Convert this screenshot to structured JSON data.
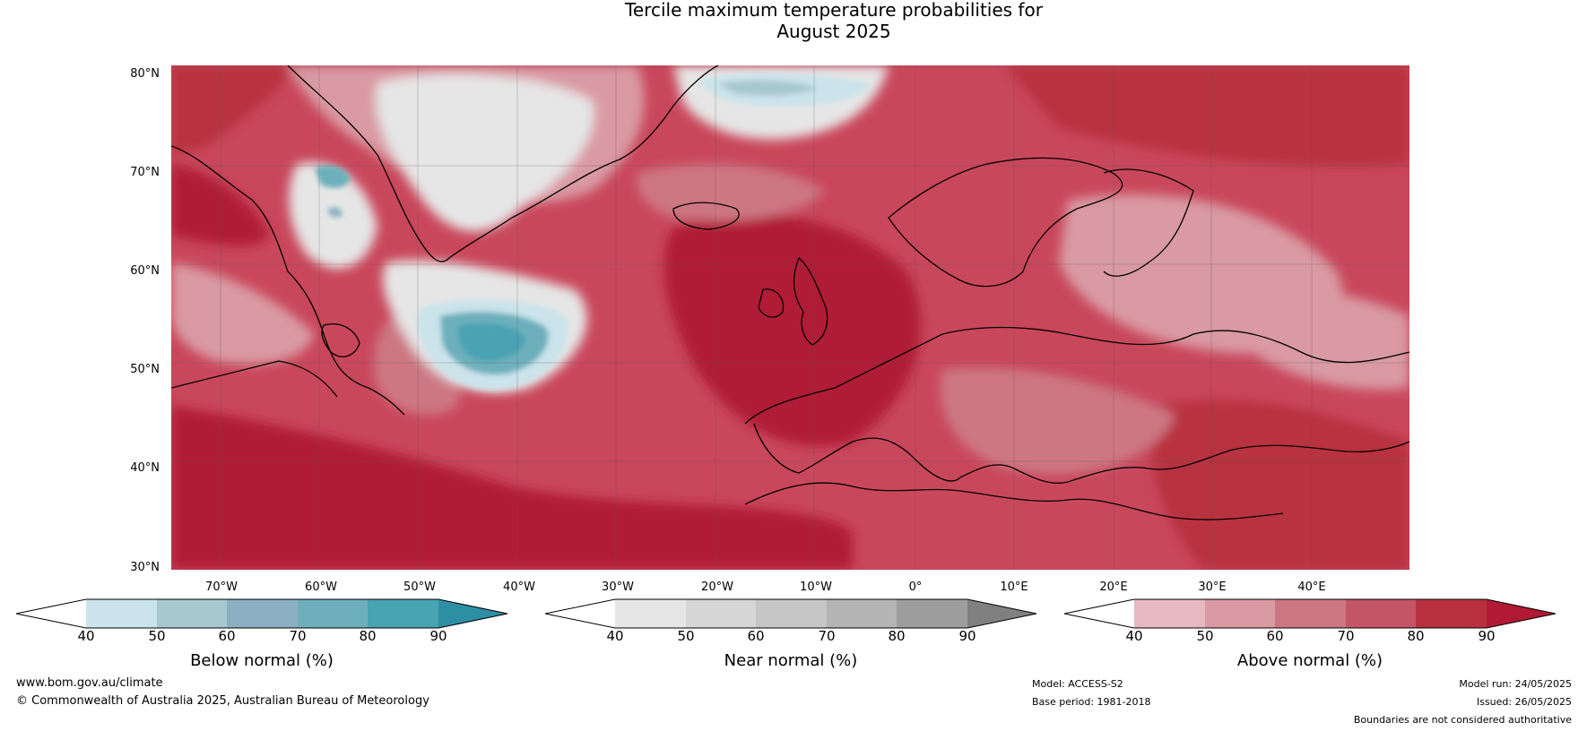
{
  "title_line1": "Tercile maximum temperature probabilities for",
  "title_line2": "August 2025",
  "lat_ticks": [
    "80°N",
    "70°N",
    "60°N",
    "50°N",
    "40°N",
    "30°N"
  ],
  "lon_ticks": [
    "70°W",
    "60°W",
    "50°W",
    "40°W",
    "30°W",
    "20°W",
    "10°W",
    "0°",
    "10°E",
    "20°E",
    "30°E",
    "40°E"
  ],
  "colorbars": [
    {
      "title": "Below normal (%)",
      "ticks": [
        "40",
        "50",
        "60",
        "70",
        "80",
        "90"
      ],
      "colors": [
        "#ffffff",
        "#cbe3ea",
        "#a8c8d0",
        "#8cb0c2",
        "#6db0bc",
        "#48a3b3",
        "#2e8fa4"
      ]
    },
    {
      "title": "Near normal (%)",
      "ticks": [
        "40",
        "50",
        "60",
        "70",
        "80",
        "90"
      ],
      "colors": [
        "#ffffff",
        "#e6e6e6",
        "#d6d6d6",
        "#c6c6c6",
        "#b4b4b4",
        "#9e9e9e",
        "#808080"
      ]
    },
    {
      "title": "Above normal (%)",
      "ticks": [
        "40",
        "50",
        "60",
        "70",
        "80",
        "90"
      ],
      "colors": [
        "#ffffff",
        "#e6b8bf",
        "#d99aa3",
        "#cd7783",
        "#c45566",
        "#b8303f",
        "#b01a34"
      ]
    }
  ],
  "footer": {
    "site": "www.bom.gov.au/climate",
    "copyright": "© Commonwealth of Australia 2025, Australian Bureau of Meteorology",
    "model": "Model: ACCESS-S2",
    "base_period": "Base period: 1981-2018",
    "model_run": "Model run: 24/05/2025",
    "issued": "Issued: 26/05/2025",
    "disclaimer": "Boundaries are not considered authoritative"
  }
}
